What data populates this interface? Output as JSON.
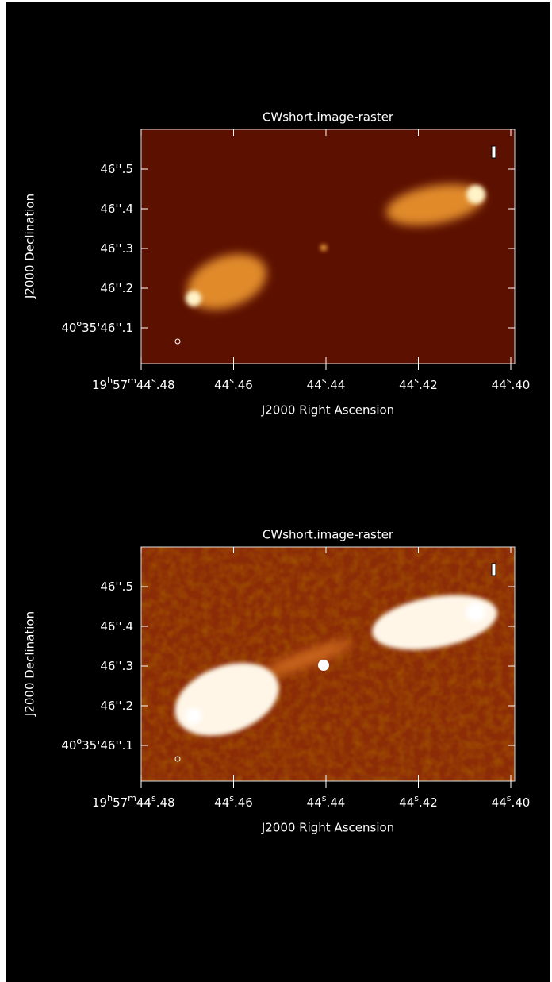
{
  "panels": [
    {
      "title": "CWshort.image-raster",
      "x_axis_label": "J2000 Right Ascension",
      "y_axis_label": "J2000 Declination",
      "x_ticks": [
        [
          "19",
          "h",
          "57",
          "m",
          "44",
          "s",
          ".48"
        ],
        [
          "44",
          "s",
          ".46"
        ],
        [
          "44",
          "s",
          ".44"
        ],
        [
          "44",
          "s",
          ".42"
        ],
        [
          "44",
          "s",
          ".40"
        ]
      ],
      "y_ticks": [
        [
          "46''.5"
        ],
        [
          "46''.4"
        ],
        [
          "46''.3"
        ],
        [
          "46''.2"
        ],
        [
          "40",
          "o",
          "35'46''.1"
        ]
      ]
    },
    {
      "title": "CWshort.image-raster",
      "x_axis_label": "J2000 Right Ascension",
      "y_axis_label": "J2000 Declination",
      "x_ticks": [
        [
          "19",
          "h",
          "57",
          "m",
          "44",
          "s",
          ".48"
        ],
        [
          "44",
          "s",
          ".46"
        ],
        [
          "44",
          "s",
          ".44"
        ],
        [
          "44",
          "s",
          ".42"
        ],
        [
          "44",
          "s",
          ".40"
        ]
      ],
      "y_ticks": [
        [
          "46''.5"
        ],
        [
          "46''.4"
        ],
        [
          "46''.3"
        ],
        [
          "46''.2"
        ],
        [
          "40",
          "o",
          "35'46''.1"
        ]
      ]
    }
  ]
}
